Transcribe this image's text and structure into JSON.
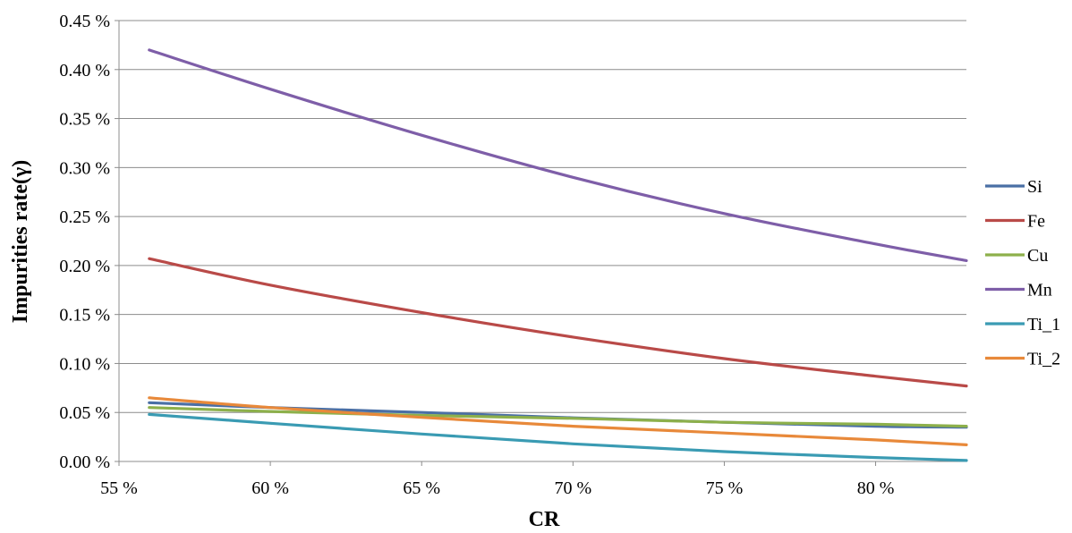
{
  "chart_data": {
    "type": "line",
    "xlabel": "CR",
    "ylabel": "Impurities rate(γ)",
    "xlim": [
      0.55,
      0.83
    ],
    "ylim": [
      0.0,
      0.0045
    ],
    "x_ticks": [
      "55 %",
      "60 %",
      "65 %",
      "70 %",
      "75 %",
      "80 %"
    ],
    "y_ticks": [
      "0.00 %",
      "0.05 %",
      "0.10 %",
      "0.15 %",
      "0.20 %",
      "0.25 %",
      "0.30 %",
      "0.35 %",
      "0.40 %",
      "0.45 %"
    ],
    "grid": "horizontal",
    "legend_position": "right",
    "x": [
      0.56,
      0.6,
      0.65,
      0.7,
      0.75,
      0.8,
      0.83
    ],
    "series": [
      {
        "name": "Si",
        "color": "#4a6fa5",
        "values": [
          0.0006,
          0.00055,
          0.0005,
          0.000445,
          0.0004,
          0.00036,
          0.00035
        ]
      },
      {
        "name": "Fe",
        "color": "#b94a48",
        "values": [
          0.00207,
          0.0018,
          0.00152,
          0.00127,
          0.00105,
          0.00087,
          0.00077
        ]
      },
      {
        "name": "Cu",
        "color": "#8db04b",
        "values": [
          0.00055,
          0.00051,
          0.00047,
          0.00044,
          0.0004,
          0.00038,
          0.00036
        ]
      },
      {
        "name": "Mn",
        "color": "#7e5ea8",
        "values": [
          0.0042,
          0.0038,
          0.00333,
          0.0029,
          0.00253,
          0.00222,
          0.00205
        ]
      },
      {
        "name": "Ti_1",
        "color": "#3a9bb3",
        "values": [
          0.00048,
          0.00039,
          0.00028,
          0.00018,
          0.0001,
          4e-05,
          1e-05
        ]
      },
      {
        "name": "Ti_2",
        "color": "#e8893a",
        "values": [
          0.00065,
          0.00055,
          0.00045,
          0.00036,
          0.00029,
          0.00022,
          0.00017
        ]
      }
    ]
  }
}
